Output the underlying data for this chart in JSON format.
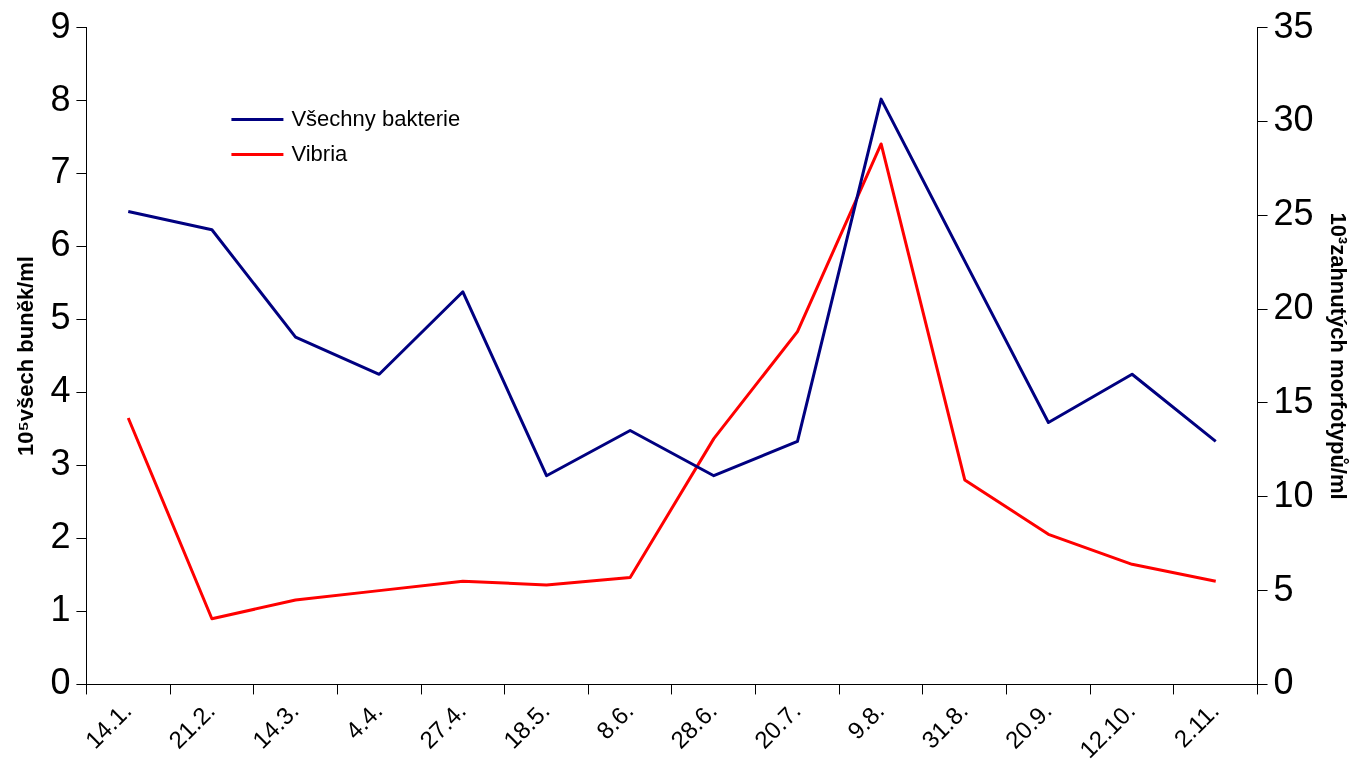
{
  "chart_data": {
    "type": "line",
    "categories": [
      "14.1.",
      "21.2.",
      "14.3.",
      "4.4.",
      "27.4.",
      "18.5.",
      "8.6.",
      "28.6.",
      "20.7.",
      "9.8.",
      "31.8.",
      "20.9.",
      "12.10.",
      "2.11."
    ],
    "series": [
      {
        "name": "Všechny bakterie",
        "color": "#000080",
        "values": [
          6.48,
          6.23,
          4.76,
          4.25,
          5.38,
          2.86,
          3.48,
          2.86,
          3.33,
          8.02,
          5.8,
          3.59,
          4.25,
          3.33
        ]
      },
      {
        "name": "Vibria",
        "color": "#ff0000",
        "axis": "y2",
        "values": [
          14.2,
          3.5,
          4.5,
          5.0,
          5.5,
          5.3,
          5.7,
          13.1,
          18.8,
          28.8,
          10.9,
          8.0,
          6.4,
          5.5
        ]
      }
    ],
    "ylabel": "10⁵všech buněk/ml",
    "y2label": "10³zahnutých morfotypů/ml",
    "ylim": [
      0,
      9
    ],
    "yticks": [
      0,
      1,
      2,
      3,
      4,
      5,
      6,
      7,
      8,
      9
    ],
    "y2lim": [
      0,
      35
    ],
    "y2ticks": [
      0,
      5,
      10,
      15,
      20,
      25,
      30,
      35
    ],
    "grid": false,
    "legend": "top left",
    "marker": "none",
    "line_style": "solid"
  }
}
